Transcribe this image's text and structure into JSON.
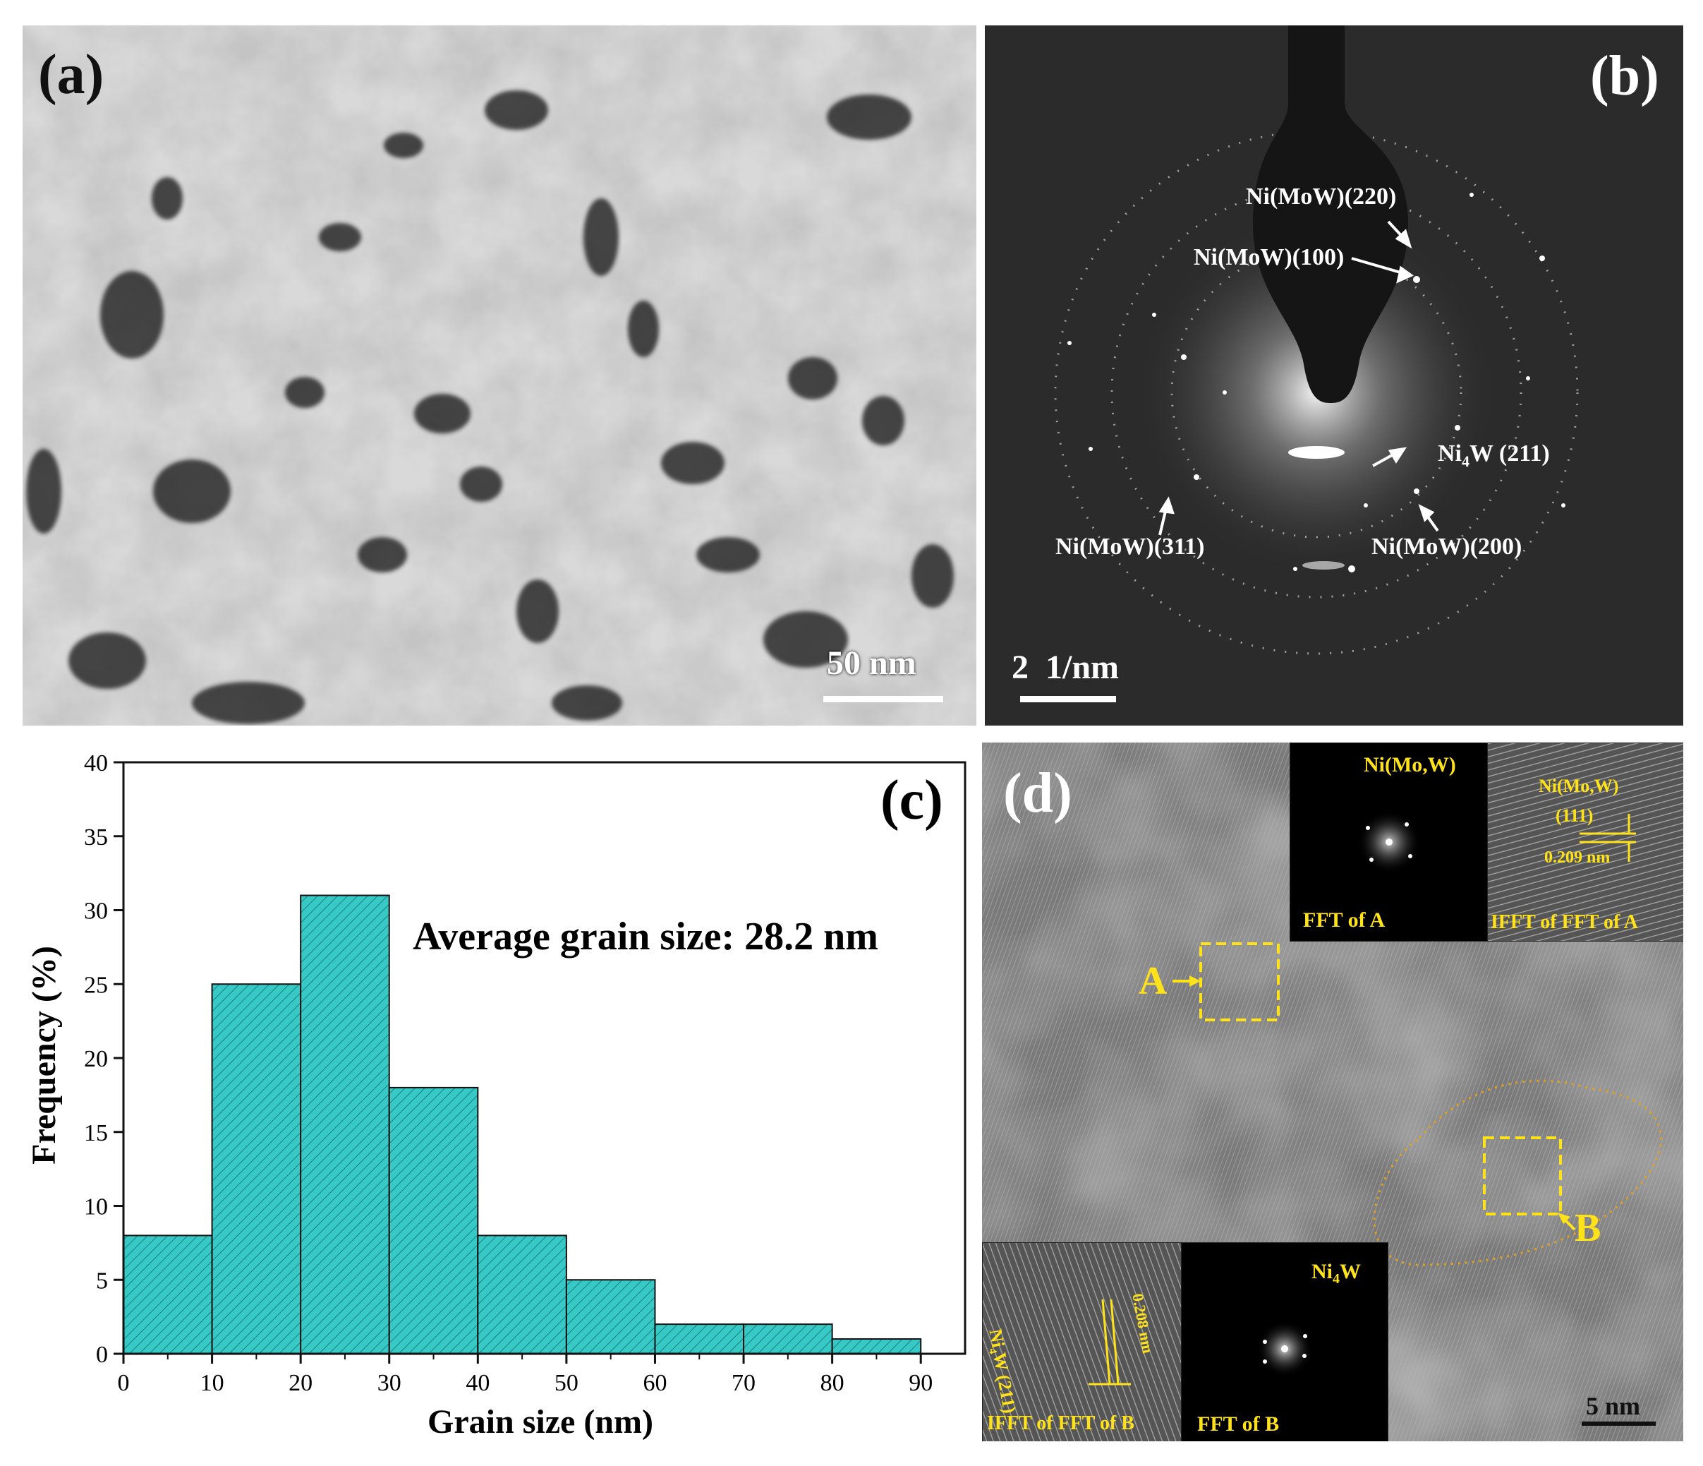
{
  "panel_a": {
    "label": "(a)",
    "scale": "50 nm"
  },
  "panel_b": {
    "label": "(b)",
    "scale": "2  1/nm",
    "annotations": {
      "ni220": "Ni(MoW)(220)",
      "ni100": "Ni(MoW)(100)",
      "ni4w211_prefix": "Ni",
      "ni4w211_sub": "4",
      "ni4w211_suffix": "W (211)",
      "ni311": "Ni(MoW)(311)",
      "ni200": "Ni(MoW)(200)"
    }
  },
  "panel_d": {
    "label": "(d)",
    "scale": "5 nm",
    "region_a": "A",
    "region_b": "B",
    "inset_fft_a": {
      "phase": "Ni(Mo,W)",
      "caption": "FFT of A"
    },
    "inset_ifft_a": {
      "plane_line1": "Ni(Mo,W)",
      "plane_line2": "(111)",
      "spacing": "0.209 nm",
      "caption": "IFFT of FFT of A"
    },
    "inset_ifft_b": {
      "plane": "Ni₄W (211)",
      "spacing": "0.208 nm",
      "caption": "IFFT of FFT of B"
    },
    "inset_fft_b": {
      "phase_prefix": "Ni",
      "phase_sub": "4",
      "phase_suffix": "W",
      "caption": "FFT of B"
    }
  },
  "chart_data": {
    "type": "bar",
    "panel_label": "(c)",
    "bin_edges": [
      0,
      10,
      20,
      30,
      40,
      50,
      60,
      70,
      80,
      90
    ],
    "values": [
      8,
      25,
      31,
      18,
      8,
      5,
      2,
      2,
      1
    ],
    "xlabel": "Grain size (nm)",
    "ylabel": "Frequency (%)",
    "xlim": [
      0,
      95
    ],
    "ylim": [
      0,
      40
    ],
    "xticks": [
      "0",
      "10",
      "20",
      "30",
      "40",
      "50",
      "60",
      "70",
      "80",
      "90"
    ],
    "yticks": [
      "0",
      "5",
      "10",
      "15",
      "20",
      "25",
      "30",
      "35",
      "40"
    ],
    "annotation": "Average grain size: 28.2 nm",
    "bar_color": "#36c9c6",
    "grid": false
  }
}
